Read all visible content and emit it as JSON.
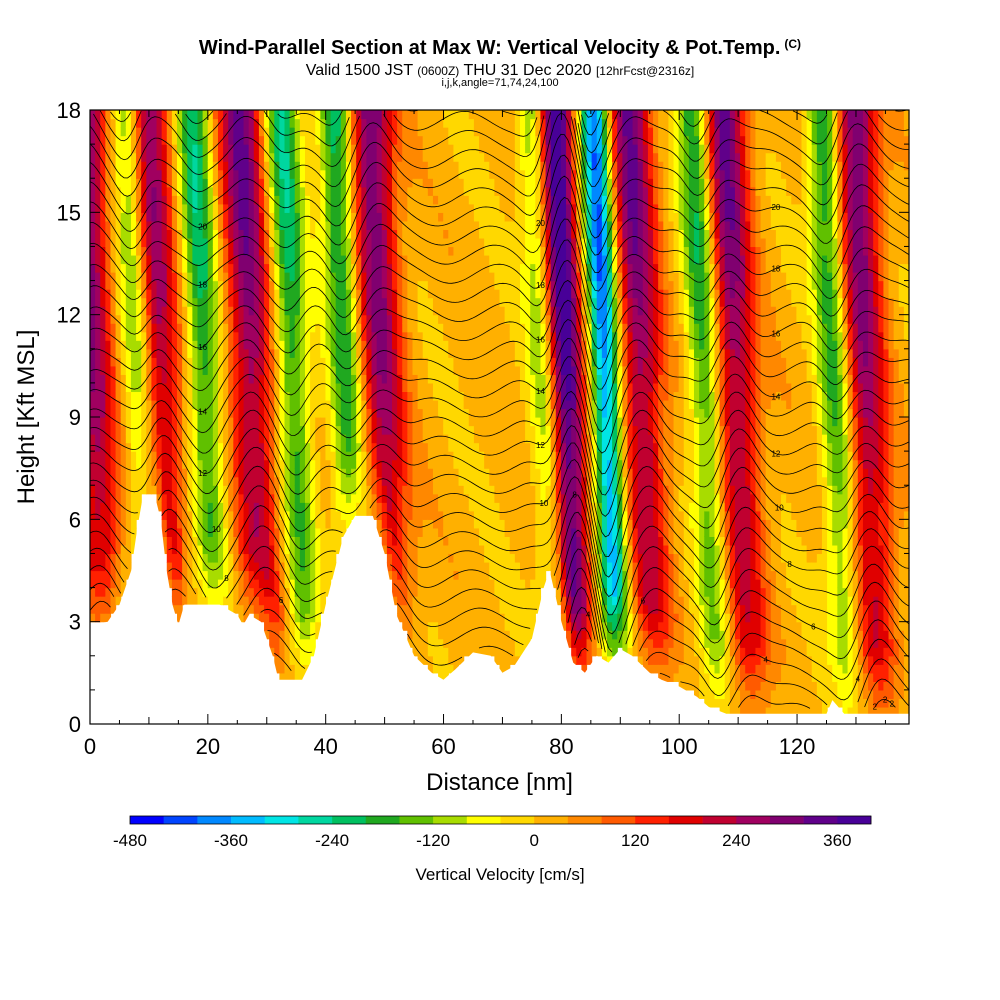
{
  "title": {
    "main": "Wind-Parallel Section at Max W: Vertical Velocity & Pot.Temp.",
    "copyright": "(C)",
    "valid_prefix": "Valid 1500 JST",
    "valid_utc": "(0600Z)",
    "valid_date": "THU 31 Dec 2020",
    "forecast": "[12hrFcst@2316z]",
    "params": "i,j,k,angle=71,74,24,100"
  },
  "chart_data": {
    "type": "heatmap",
    "xlabel": "Distance [nm]",
    "ylabel": "Height [Kft MSL]",
    "xlim": [
      0,
      139
    ],
    "ylim": [
      0,
      18
    ],
    "x_ticks": [
      0,
      20,
      40,
      60,
      80,
      100,
      120
    ],
    "y_ticks": [
      0,
      3,
      6,
      9,
      12,
      15,
      18
    ],
    "colorbar": {
      "label": "Vertical Velocity [cm/s]",
      "min": -480,
      "max": 400,
      "step": 40,
      "tick_labels": [
        "-480",
        "-360",
        "-240",
        "-120",
        "0",
        "120",
        "240",
        "360"
      ],
      "colors": [
        "#0000ff",
        "#0044ff",
        "#0088ff",
        "#00bbff",
        "#00e5e5",
        "#00d7a0",
        "#00c060",
        "#20a820",
        "#60c000",
        "#a8dc00",
        "#ffff00",
        "#ffd800",
        "#ffb000",
        "#ff8800",
        "#ff5a00",
        "#ff2000",
        "#e00000",
        "#c00030",
        "#a00060",
        "#800070",
        "#60008a",
        "#480098"
      ]
    },
    "updraft_axes_nm": [
      3,
      14,
      30,
      52,
      83,
      96,
      112,
      134
    ],
    "downdraft_axes_nm": [
      11,
      22,
      37,
      46,
      80,
      90,
      107,
      129
    ],
    "isentrope_labels": [
      "2",
      "4",
      "6",
      "8",
      "10",
      "12",
      "14",
      "16",
      "18",
      "20"
    ],
    "isentrope_levels_degC": [
      2,
      4,
      6,
      8,
      10,
      12,
      14,
      16,
      18,
      20
    ],
    "terrain_profile": [
      {
        "x": 0,
        "y": 2.9
      },
      {
        "x": 3,
        "y": 3.0
      },
      {
        "x": 5,
        "y": 3.5
      },
      {
        "x": 7,
        "y": 4.5
      },
      {
        "x": 8,
        "y": 5.7
      },
      {
        "x": 9,
        "y": 6.7
      },
      {
        "x": 11,
        "y": 6.7
      },
      {
        "x": 12,
        "y": 6.0
      },
      {
        "x": 13,
        "y": 4.5
      },
      {
        "x": 14,
        "y": 3.5
      },
      {
        "x": 15,
        "y": 2.9
      },
      {
        "x": 16,
        "y": 3.5
      },
      {
        "x": 22,
        "y": 3.5
      },
      {
        "x": 25,
        "y": 3.2
      },
      {
        "x": 26,
        "y": 2.9
      },
      {
        "x": 27,
        "y": 3.2
      },
      {
        "x": 29,
        "y": 3.0
      },
      {
        "x": 31,
        "y": 2.0
      },
      {
        "x": 32,
        "y": 1.3
      },
      {
        "x": 36,
        "y": 1.3
      },
      {
        "x": 38,
        "y": 2.0
      },
      {
        "x": 40,
        "y": 3.5
      },
      {
        "x": 43,
        "y": 5.5
      },
      {
        "x": 45,
        "y": 6.1
      },
      {
        "x": 48,
        "y": 6.1
      },
      {
        "x": 50,
        "y": 5.0
      },
      {
        "x": 52,
        "y": 3.2
      },
      {
        "x": 55,
        "y": 2.0
      },
      {
        "x": 58,
        "y": 1.5
      },
      {
        "x": 60,
        "y": 1.3
      },
      {
        "x": 62,
        "y": 1.6
      },
      {
        "x": 65,
        "y": 2.1
      },
      {
        "x": 68,
        "y": 2.0
      },
      {
        "x": 70,
        "y": 1.5
      },
      {
        "x": 72,
        "y": 1.7
      },
      {
        "x": 75,
        "y": 2.5
      },
      {
        "x": 77,
        "y": 4.0
      },
      {
        "x": 78,
        "y": 4.5
      },
      {
        "x": 80,
        "y": 3.0
      },
      {
        "x": 82,
        "y": 1.8
      },
      {
        "x": 84,
        "y": 1.5
      },
      {
        "x": 86,
        "y": 2.0
      },
      {
        "x": 88,
        "y": 1.8
      },
      {
        "x": 90,
        "y": 2.2
      },
      {
        "x": 92,
        "y": 2.0
      },
      {
        "x": 95,
        "y": 1.5
      },
      {
        "x": 97,
        "y": 1.3
      },
      {
        "x": 100,
        "y": 1.1
      },
      {
        "x": 103,
        "y": 0.8
      },
      {
        "x": 105,
        "y": 0.5
      },
      {
        "x": 108,
        "y": 0.3
      },
      {
        "x": 125,
        "y": 0.3
      },
      {
        "x": 126,
        "y": 0.7
      },
      {
        "x": 128,
        "y": 0.3
      },
      {
        "x": 139,
        "y": 0.3
      }
    ]
  }
}
